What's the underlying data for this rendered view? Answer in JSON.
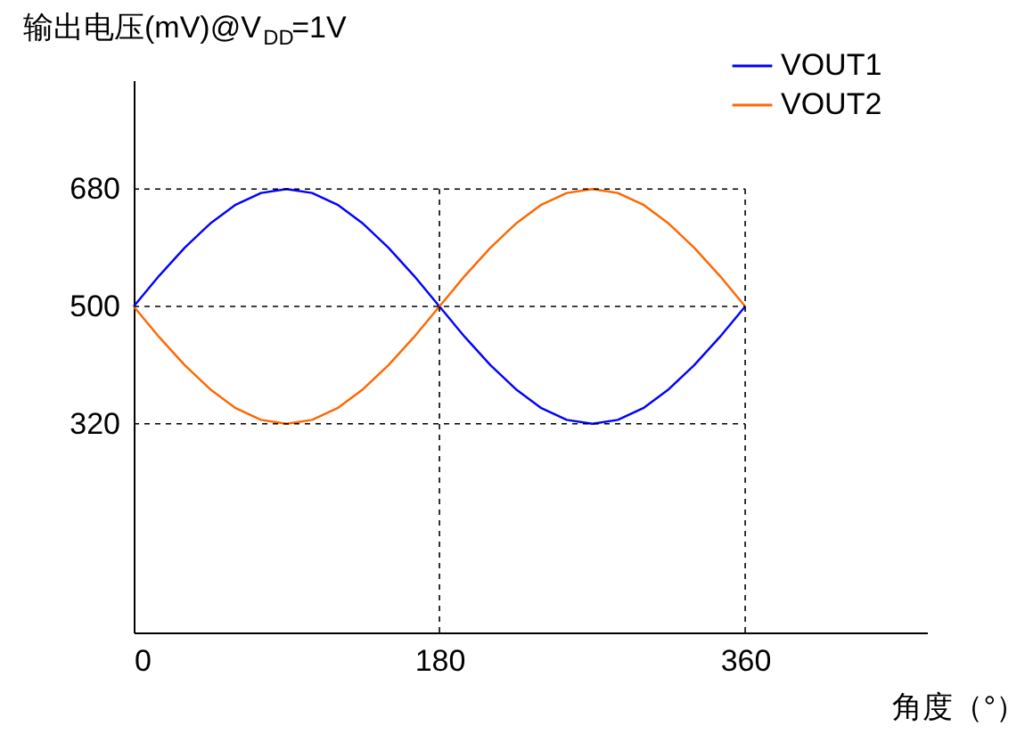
{
  "chart_data": {
    "type": "line",
    "ylabel": "输出电压(mV)@V$_{DD}$=1V",
    "xlabel": "角度（°）",
    "x": [
      0,
      15,
      30,
      45,
      60,
      75,
      90,
      105,
      120,
      135,
      150,
      165,
      180,
      195,
      210,
      225,
      240,
      255,
      270,
      285,
      300,
      315,
      330,
      345,
      360
    ],
    "series": [
      {
        "name": "VOUT1",
        "color": "#0000ff",
        "values": [
          500,
          547,
          590,
          627,
          656,
          674,
          680,
          674,
          656,
          627,
          590,
          547,
          500,
          453,
          410,
          373,
          344,
          326,
          320,
          326,
          344,
          373,
          410,
          453,
          500
        ]
      },
      {
        "name": "VOUT2",
        "color": "#ff6600",
        "values": [
          500,
          453,
          410,
          373,
          344,
          326,
          320,
          326,
          344,
          373,
          410,
          453,
          500,
          547,
          590,
          627,
          656,
          674,
          680,
          674,
          656,
          627,
          590,
          547,
          500
        ]
      }
    ],
    "xlim": [
      0,
      467
    ],
    "ylim": [
      0,
      847
    ],
    "xticks": [
      0,
      180,
      360
    ],
    "yticks": [
      320,
      500,
      680
    ],
    "grid": true,
    "legend": "top right",
    "marker": "none",
    "line_style": "solid"
  }
}
